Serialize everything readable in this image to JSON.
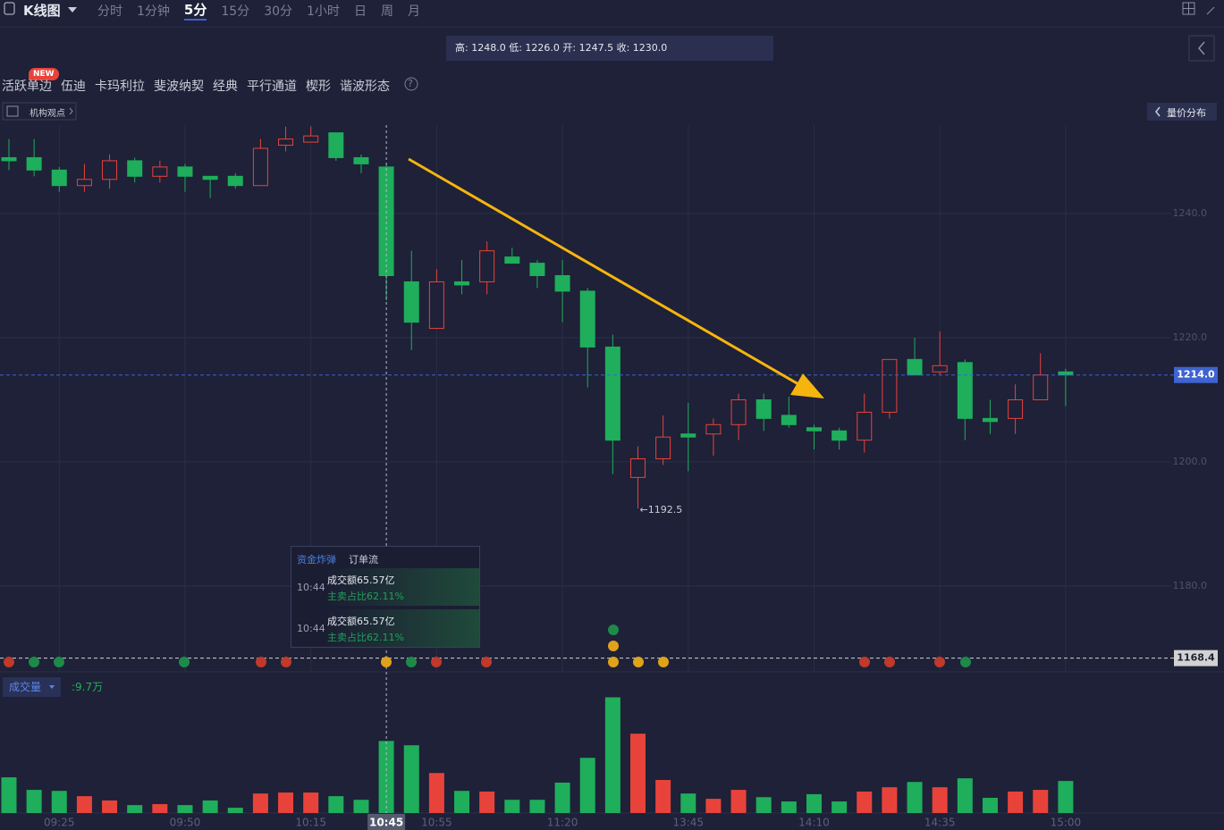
{
  "toolbar": {
    "title": "K线图",
    "tabs": [
      "分时",
      "1分钟",
      "5分",
      "15分",
      "30分",
      "1小时",
      "日",
      "周",
      "月"
    ],
    "active_tab": "5分"
  },
  "info_bar": "高: 1248.0 低: 1226.0 开: 1247.5 收: 1230.0",
  "indicators": {
    "badge": "NEW",
    "items": [
      "活跃单边",
      "伍迪",
      "卡玛利拉",
      "斐波纳契",
      "经典",
      "平行通道",
      "楔形",
      "谐波形态"
    ],
    "help": "?"
  },
  "institution_view": "机构观点",
  "volume_profile": "量价分布",
  "tooltip": {
    "tabs": [
      "资金炸弹",
      "订单流"
    ],
    "entries": [
      {
        "time": "10:44",
        "amount": "成交额65.57亿",
        "ratio": "主卖占比62.11%"
      },
      {
        "time": "10:44",
        "amount": "成交额65.57亿",
        "ratio": "主卖占比62.11%"
      }
    ]
  },
  "chart_data": {
    "type": "candlestick",
    "categories": [
      null,
      null,
      "09:25",
      null,
      null,
      null,
      null,
      "09:50",
      null,
      null,
      null,
      null,
      "10:15",
      null,
      null,
      "10:45",
      null,
      "10:55",
      null,
      null,
      null,
      null,
      "11:20",
      null,
      null,
      null,
      null,
      "13:45",
      null,
      null,
      null,
      null,
      "14:10",
      null,
      null,
      null,
      null,
      "14:35",
      null,
      null,
      null,
      null,
      "15:00"
    ],
    "open": [
      1249.0,
      1249.0,
      1247.0,
      1244.5,
      1245.5,
      1248.5,
      1246.0,
      1247.5,
      1246.0,
      1246.0,
      1244.5,
      1251.0,
      1251.5,
      1253.0,
      1249.0,
      1247.5,
      1229.0,
      1221.5,
      1229.0,
      1229.0,
      1233.0,
      1232.0,
      1230.0,
      1227.5,
      1218.5,
      1197.5,
      1200.5,
      1204.5,
      1204.5,
      1206.0,
      1210.0,
      1207.5,
      1205.5,
      1205.0,
      1203.5,
      1208.0,
      1216.5,
      1214.5,
      1216.0,
      1207.0,
      1207.0,
      1210.0,
      1214.5
    ],
    "high": [
      1252.0,
      1252.0,
      1247.5,
      1248.0,
      1249.5,
      1249.0,
      1248.5,
      1248.0,
      1246.0,
      1246.5,
      1252.0,
      1254.0,
      1254.0,
      1253.0,
      1249.5,
      1248.0,
      1234.0,
      1231.0,
      1232.5,
      1235.5,
      1234.5,
      1232.5,
      1232.5,
      1228.0,
      1220.5,
      1202.5,
      1207.5,
      1209.5,
      1207.0,
      1211.0,
      1211.0,
      1210.5,
      1206.0,
      1205.5,
      1211.0,
      1216.5,
      1220.0,
      1221.0,
      1216.5,
      1210.0,
      1212.5,
      1217.5,
      1215.0
    ],
    "low": [
      1247.0,
      1246.0,
      1243.5,
      1243.5,
      1244.0,
      1245.0,
      1245.0,
      1243.5,
      1242.5,
      1244.0,
      1244.5,
      1250.0,
      1251.5,
      1248.5,
      1246.5,
      1226.0,
      1218.0,
      1221.5,
      1227.0,
      1227.0,
      1232.0,
      1228.0,
      1222.5,
      1212.0,
      1198.0,
      1192.5,
      1199.5,
      1198.5,
      1201.0,
      1203.5,
      1205.0,
      1205.5,
      1202.0,
      1202.0,
      1201.5,
      1207.0,
      1214.0,
      1214.0,
      1203.5,
      1204.5,
      1204.5,
      1210.0,
      1209.0
    ],
    "close": [
      1248.5,
      1247.0,
      1244.5,
      1245.5,
      1248.5,
      1246.0,
      1247.5,
      1246.0,
      1245.5,
      1244.5,
      1250.5,
      1252.0,
      1252.5,
      1249.0,
      1248.0,
      1230.0,
      1222.5,
      1229.0,
      1228.5,
      1234.0,
      1232.0,
      1230.0,
      1227.5,
      1218.5,
      1203.5,
      1200.5,
      1204.0,
      1204.0,
      1206.0,
      1210.0,
      1207.0,
      1206.0,
      1205.0,
      1203.5,
      1208.0,
      1216.5,
      1214.0,
      1215.5,
      1207.0,
      1206.5,
      1210.0,
      1214.0,
      1214.0
    ],
    "up_color": "#e8433b",
    "down_color": "#1fae5b",
    "ylim": [
      1166,
      1254
    ],
    "yticks": [
      {
        "value": 1240,
        "label": "1240.0"
      },
      {
        "value": 1220,
        "label": "1220.0"
      },
      {
        "value": 1200,
        "label": "1200.0"
      },
      {
        "value": 1180,
        "label": "1180.0"
      }
    ],
    "grid": true,
    "crosshair": "10:45",
    "price_lines": [
      {
        "value": 1214,
        "label": "1214.0",
        "color": "#3f63d0"
      },
      {
        "value": 1168.4,
        "label": "1168.4",
        "color": "#d2d2d2"
      }
    ],
    "low_annotation": {
      "value": 1192.5,
      "label": "←1192.5"
    },
    "volume": {
      "name": "成交量",
      "values": [
        10.8,
        7.0,
        6.7,
        5.1,
        3.8,
        2.4,
        2.7,
        2.4,
        3.8,
        1.6,
        5.9,
        6.2,
        6.2,
        5.1,
        4.0,
        21.8,
        20.5,
        12.1,
        6.7,
        6.5,
        4.0,
        4.0,
        9.2,
        16.7,
        35.0,
        24.0,
        10.0,
        5.9,
        4.3,
        7.0,
        4.8,
        3.5,
        5.7,
        3.5,
        6.5,
        7.8,
        9.4,
        7.8,
        10.5,
        4.6,
        6.5,
        7.0,
        9.7
      ],
      "ylim": [
        0,
        40
      ],
      "current_label": ":9.7万"
    }
  }
}
